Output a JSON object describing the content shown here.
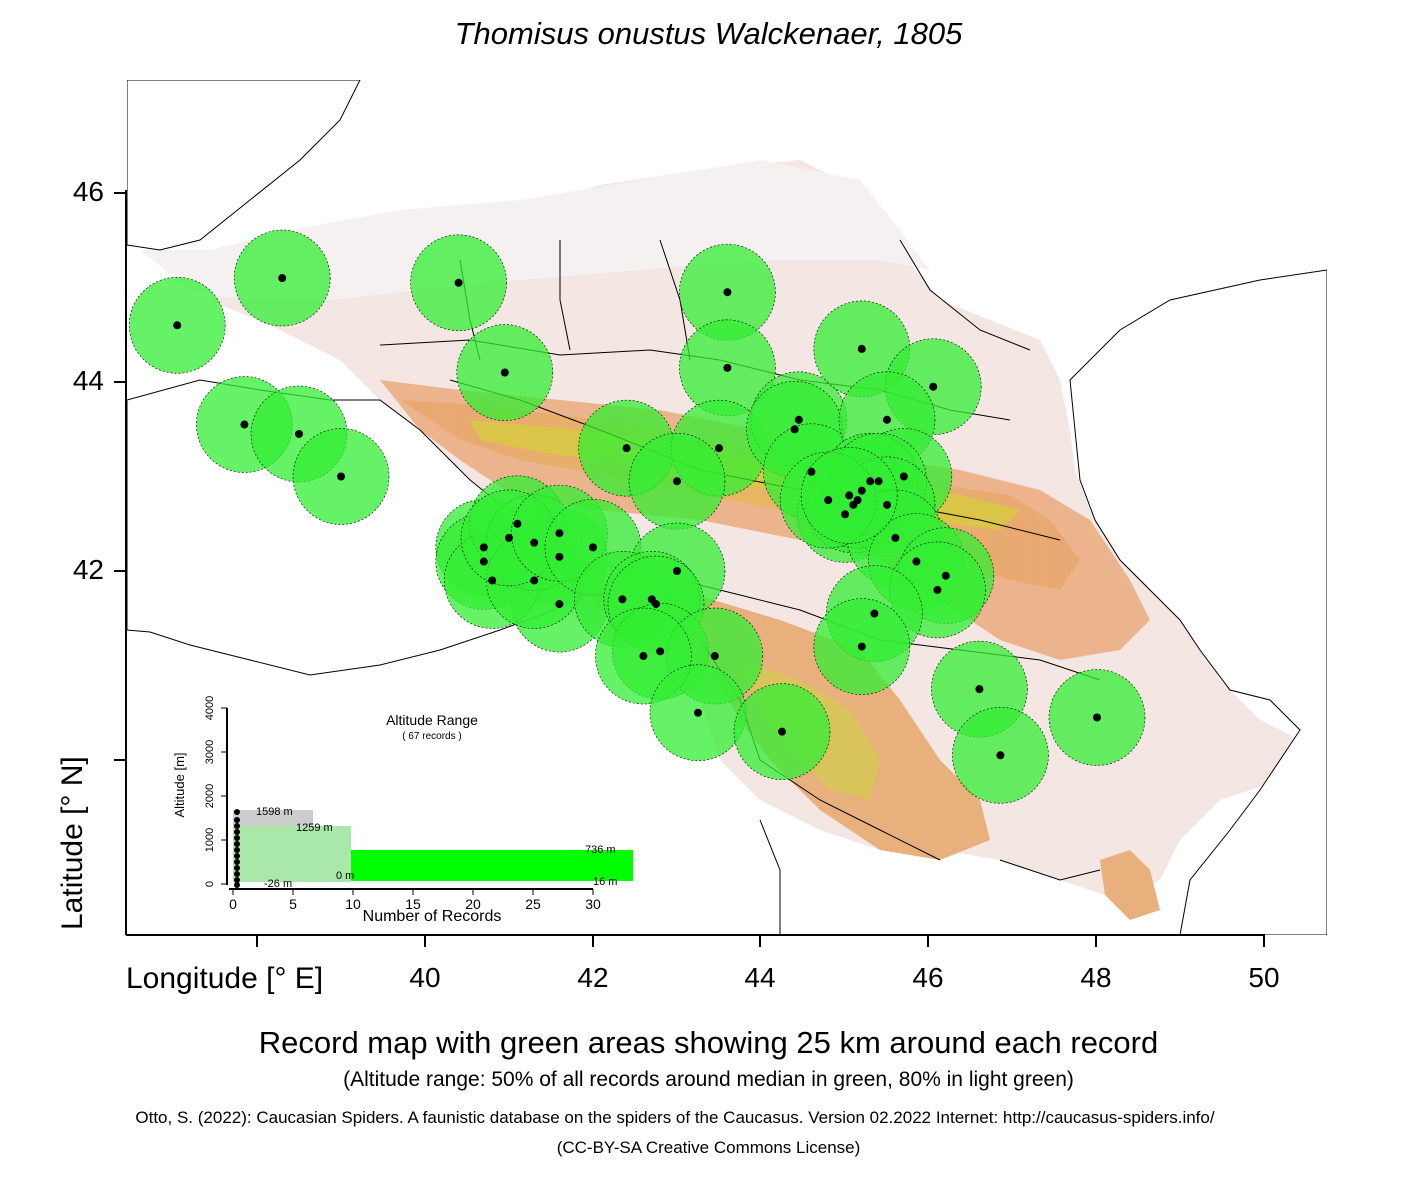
{
  "title": "Thomisus onustus Walckenaer, 1805",
  "axes": {
    "y_label": "Latitude [° N]",
    "x_label": "Longitude [° E]",
    "y_ticks": [
      "46",
      "44",
      "42"
    ],
    "x_ticks": [
      "40",
      "42",
      "44",
      "46",
      "48",
      "50"
    ]
  },
  "captions": {
    "main": "Record map with green areas showing 25 km around each record",
    "altitude_note": "(Altitude range: 50% of all records around median in green, 80% in light green)",
    "citation": "Otto, S. (2022): Caucasian Spiders. A faunistic database on the spiders of the Caucasus. Version 02.2022 Internet: http://caucasus-spiders.info/",
    "license": "(CC-BY-SA Creative Commons License)"
  },
  "inset": {
    "title": "Altitude Range",
    "subtitle": "( 67 records )",
    "y_label": "Altitude [m]",
    "x_label": "Number of Records",
    "y_ticks": [
      "0",
      "1000",
      "2000",
      "3000",
      "4000"
    ],
    "x_ticks": [
      "0",
      "5",
      "10",
      "15",
      "20",
      "25",
      "30"
    ],
    "labels": {
      "max": "1598  m",
      "p80_high": "1259  m",
      "p50_high": "736  m",
      "p50_low": "16  m",
      "p80_low": "0  m",
      "min": "-26  m"
    }
  },
  "colors": {
    "record_area": "#33ee33",
    "record_area_light": "#aaeeaa",
    "median_band": "#00ff00",
    "p80_band": "#aae8aa",
    "range_band": "#cccccc",
    "point": "#000000"
  },
  "records": [
    [
      37.05,
      44.6
    ],
    [
      38.3,
      45.1
    ],
    [
      40.4,
      45.05
    ],
    [
      40.95,
      44.1
    ],
    [
      37.85,
      43.55
    ],
    [
      38.5,
      43.45
    ],
    [
      39.0,
      43.0
    ],
    [
      42.4,
      43.3
    ],
    [
      43.6,
      44.95
    ],
    [
      43.6,
      44.15
    ],
    [
      43.5,
      43.3
    ],
    [
      44.45,
      43.6
    ],
    [
      44.4,
      43.5
    ],
    [
      44.6,
      43.05
    ],
    [
      45.2,
      44.35
    ],
    [
      46.05,
      43.95
    ],
    [
      45.5,
      43.6
    ],
    [
      45.7,
      43.0
    ],
    [
      41.6,
      42.15
    ],
    [
      41.6,
      41.65
    ],
    [
      40.7,
      42.25
    ],
    [
      40.7,
      42.1
    ],
    [
      40.8,
      41.9
    ],
    [
      41.1,
      42.5
    ],
    [
      41.3,
      42.3
    ],
    [
      41.3,
      41.9
    ],
    [
      41.0,
      42.35
    ],
    [
      41.6,
      42.4
    ],
    [
      42.0,
      42.25
    ],
    [
      43.0,
      42.95
    ],
    [
      43.0,
      42.0
    ],
    [
      42.35,
      41.7
    ],
    [
      42.7,
      41.7
    ],
    [
      42.75,
      41.65
    ],
    [
      42.8,
      41.15
    ],
    [
      43.45,
      41.1
    ],
    [
      45.0,
      42.6
    ],
    [
      45.1,
      42.7
    ],
    [
      45.15,
      42.75
    ],
    [
      45.2,
      42.85
    ],
    [
      45.3,
      42.95
    ],
    [
      45.4,
      42.95
    ],
    [
      45.5,
      42.7
    ],
    [
      45.6,
      42.35
    ],
    [
      45.85,
      42.1
    ],
    [
      46.2,
      41.95
    ],
    [
      46.1,
      41.8
    ],
    [
      45.35,
      41.55
    ],
    [
      45.2,
      41.2
    ],
    [
      42.6,
      41.1
    ],
    [
      43.25,
      40.5
    ],
    [
      44.25,
      40.3
    ],
    [
      46.6,
      40.75
    ],
    [
      46.85,
      40.05
    ],
    [
      48.0,
      40.45
    ],
    [
      44.8,
      42.75
    ],
    [
      45.05,
      42.8
    ]
  ]
}
